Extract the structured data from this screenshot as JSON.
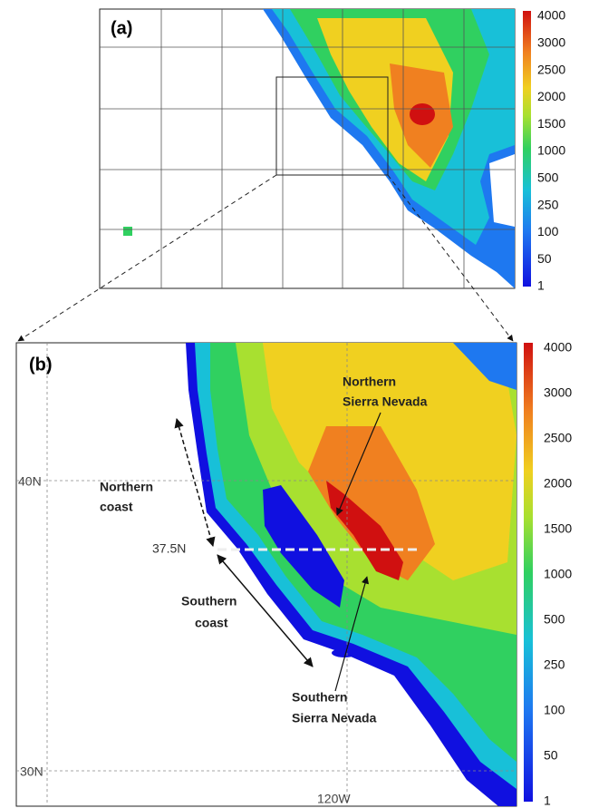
{
  "panel_a": {
    "label": "(a)",
    "colorbar": {
      "ticks": [
        4000,
        3000,
        2500,
        2000,
        1500,
        1000,
        500,
        250,
        100,
        50,
        1
      ]
    }
  },
  "panel_b": {
    "label": "(b)",
    "colorbar": {
      "ticks": [
        4000,
        3000,
        2500,
        2000,
        1500,
        1000,
        500,
        250,
        100,
        50,
        1
      ]
    },
    "grid_labels": [
      "40N",
      "30N",
      "120W"
    ],
    "divider_label": "37.5N",
    "annotations": {
      "northern_coast": [
        "Northern",
        "coast"
      ],
      "southern_coast": [
        "Southern",
        "coast"
      ],
      "northern_sierra": [
        "Northern",
        "Sierra Nevada"
      ],
      "southern_sierra": [
        "Southern",
        "Sierra Nevada"
      ]
    }
  }
}
